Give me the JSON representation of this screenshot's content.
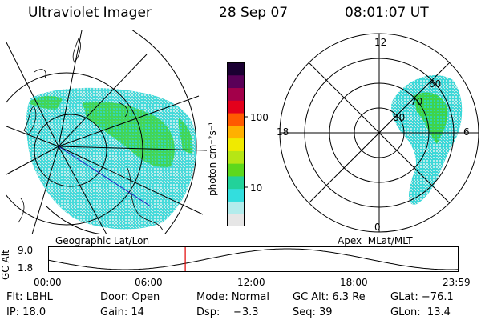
{
  "header": {
    "instrument": "Ultraviolet Imager",
    "date": "28 Sep 07",
    "time": "08:01:07 UT"
  },
  "colorbar": {
    "unit_label": "photon cm⁻²s⁻¹",
    "ticks": [
      "100",
      "10"
    ],
    "colors": [
      "#e6e6e6",
      "#b3ecec",
      "#33dede",
      "#22d29a",
      "#5dd81c",
      "#b6e615",
      "#f0ea00",
      "#ffb000",
      "#ff5a00",
      "#e3001b",
      "#a3004a",
      "#5a0058",
      "#1b0032"
    ]
  },
  "left_map": {
    "caption": "Geographic Lat/Lon"
  },
  "right_map": {
    "caption": "Apex  MLat/MLT",
    "mlt_labels": {
      "top": "12",
      "left": "18",
      "right": "6",
      "bottom": "0"
    },
    "lat_labels": [
      "60",
      "70",
      "80"
    ]
  },
  "timeline": {
    "ylabel": "GC Alt",
    "y_ticks": [
      "9.0",
      "1.8"
    ],
    "x_ticks": [
      "00:00",
      "06:00",
      "12:00",
      "18:00",
      "23:59"
    ],
    "marker_time_hours": 8.02,
    "marker_color": "#e00000"
  },
  "info": {
    "filter": "Flt: LBHL",
    "door": "Door: Open",
    "mode": "Mode: Normal",
    "gc_alt": "GC Alt: 6.3 Re",
    "glat": "GLat: −76.1",
    "ip": "IP: 18.0",
    "gain": "Gain: 14",
    "dsp": "Dsp:    −3.3",
    "seq": "Seq: 39",
    "glon": "GLon:  13.4"
  }
}
